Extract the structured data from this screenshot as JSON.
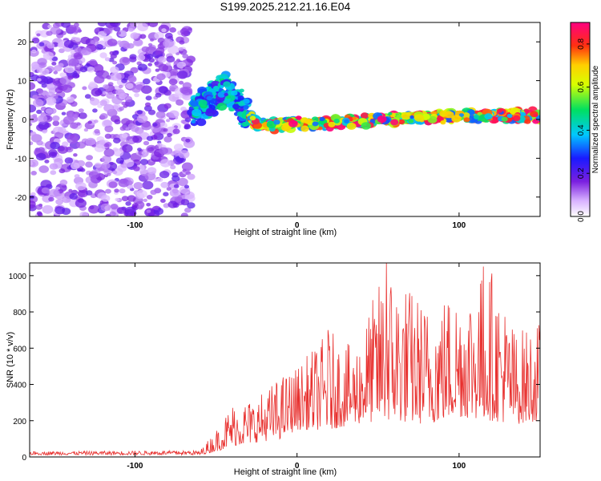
{
  "figure": {
    "title": "S199.2025.212.21.16.E04"
  },
  "chart_data": [
    {
      "type": "heatmap",
      "title": "S199.2025.212.21.16.E04",
      "xlabel": "Height of straight line (km)",
      "ylabel": "Frequency (Hz)",
      "xlim": [
        -165,
        150
      ],
      "ylim": [
        -25,
        25
      ],
      "x_ticks": [
        -100,
        0,
        100
      ],
      "y_ticks": [
        -20,
        -10,
        0,
        10,
        20
      ],
      "colorbar": {
        "label": "Normalized spectral amplitude",
        "range": [
          0.0,
          0.9
        ],
        "ticks": [
          0.0,
          0.2,
          0.4,
          0.6,
          0.8
        ],
        "colormap": "rainbow (white-violet-blue-cyan-green-yellow-red-magenta)"
      },
      "regions": [
        {
          "x_range": [
            -165,
            -65
          ],
          "freq_range": [
            -25,
            25
          ],
          "amplitude": [
            0.05,
            0.2
          ],
          "description": "broadband noise"
        },
        {
          "x_range": [
            -65,
            -30
          ],
          "freq_range": [
            -5,
            14
          ],
          "amplitude": [
            0.2,
            0.5
          ]
        },
        {
          "x_range": [
            -30,
            150
          ],
          "freq_range": [
            -3,
            3
          ],
          "amplitude": [
            0.3,
            0.9
          ]
        }
      ],
      "ridge": {
        "x": [
          -65,
          -55,
          -45,
          -35,
          -25,
          -15,
          0,
          20,
          50,
          80,
          110,
          130,
          145
        ],
        "freq": [
          2,
          5,
          8,
          3,
          -1,
          -1.5,
          -1,
          -1,
          0,
          0.5,
          1,
          1,
          1
        ]
      }
    },
    {
      "type": "line",
      "xlabel": "Height of straight line (km)",
      "ylabel": "SNR (10 * v/v)",
      "xlim": [
        -165,
        150
      ],
      "ylim": [
        0,
        1070
      ],
      "x_ticks": [
        -100,
        0,
        100
      ],
      "y_ticks": [
        0,
        200,
        400,
        600,
        800,
        1000
      ],
      "color": "#e8302e",
      "envelope": [
        {
          "x": -165,
          "base": 10,
          "peak": 30
        },
        {
          "x": -60,
          "base": 10,
          "peak": 35
        },
        {
          "x": -50,
          "base": 30,
          "peak": 150
        },
        {
          "x": -40,
          "base": 60,
          "peak": 300
        },
        {
          "x": -25,
          "base": 80,
          "peak": 330
        },
        {
          "x": -10,
          "base": 100,
          "peak": 450
        },
        {
          "x": 0,
          "base": 150,
          "peak": 500
        },
        {
          "x": 20,
          "base": 150,
          "peak": 700
        },
        {
          "x": 35,
          "base": 180,
          "peak": 600
        },
        {
          "x": 55,
          "base": 200,
          "peak": 1070
        },
        {
          "x": 80,
          "base": 180,
          "peak": 850
        },
        {
          "x": 100,
          "base": 220,
          "peak": 950
        },
        {
          "x": 120,
          "base": 200,
          "peak": 1050
        },
        {
          "x": 135,
          "base": 180,
          "peak": 700
        },
        {
          "x": 150,
          "base": 200,
          "peak": 750
        }
      ],
      "annotations": [
        {
          "x": 55,
          "y": 1070
        },
        {
          "x": 115,
          "y": 1050
        },
        {
          "x": 19,
          "y": 700
        }
      ]
    }
  ]
}
